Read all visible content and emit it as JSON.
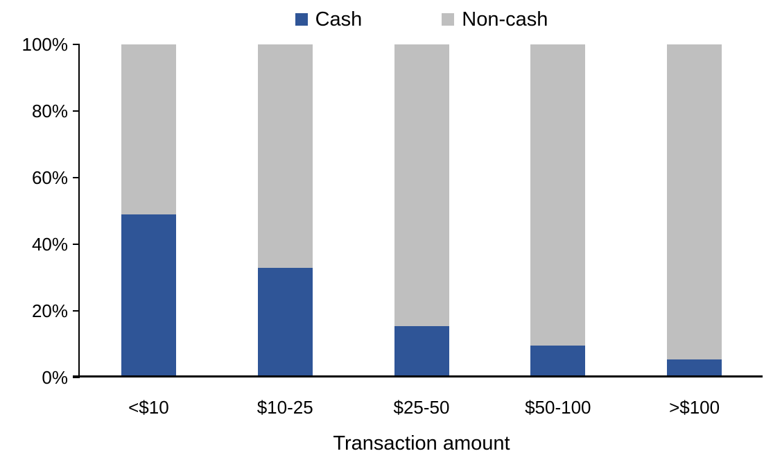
{
  "chart_data": {
    "type": "bar",
    "subtype": "stacked-100-percent",
    "title": "",
    "xlabel": "Transaction amount",
    "ylabel": "",
    "categories": [
      "<$10",
      "$10-25",
      "$25-50",
      "$50-100",
      ">$100"
    ],
    "series": [
      {
        "name": "Cash",
        "color": "#2F5597",
        "values": [
          49,
          33,
          15.5,
          9.5,
          5.5
        ]
      },
      {
        "name": "Non-cash",
        "color": "#BFBFBF",
        "values": [
          51,
          67,
          84.5,
          90.5,
          94.5
        ]
      }
    ],
    "ylim": [
      0,
      100
    ],
    "yticks": [
      "0%",
      "20%",
      "40%",
      "60%",
      "80%",
      "100%"
    ],
    "grid": false,
    "legend_position": "top-center",
    "axis_color": "#000000",
    "text_color": "#000000"
  }
}
